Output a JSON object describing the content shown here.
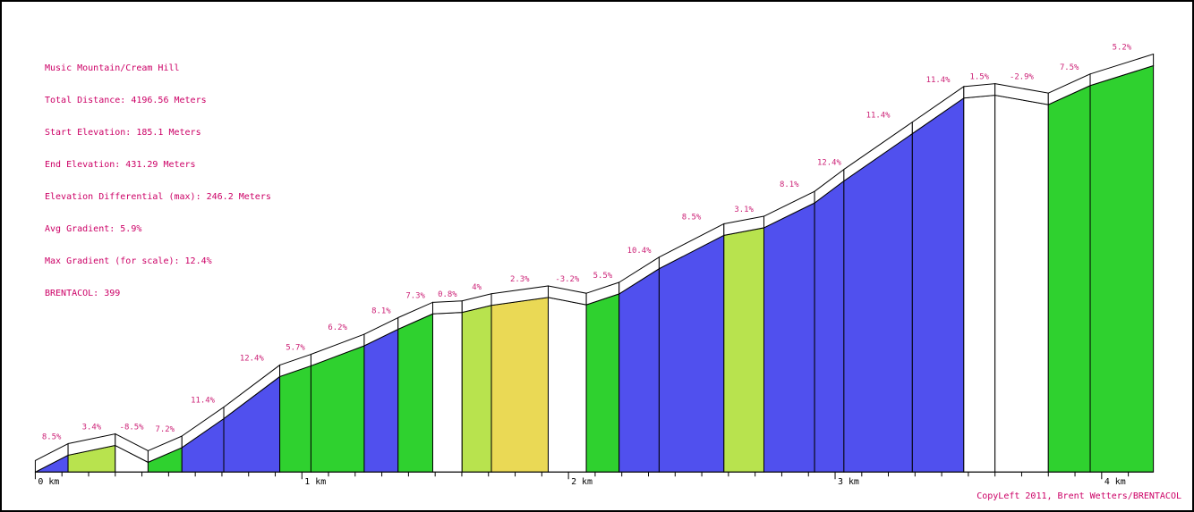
{
  "header": {
    "lines": [
      "Music Mountain/Cream Hill",
      "Total Distance: 4196.56 Meters",
      "Start Elevation: 185.1 Meters",
      "End Elevation: 431.29 Meters",
      "Elevation Differential (max): 246.2 Meters",
      "Avg Gradient: 5.9%",
      "Max Gradient (for scale): 12.4%",
      "BRENTACOL: 399"
    ]
  },
  "footer": {
    "credit": "CopyLeft 2011, Brent Wetters/BRENTACOL"
  },
  "colors": {
    "text_pink": "#cc0066",
    "label_pink": "#cc2277",
    "axis_text": "#000000",
    "outline": "#000000",
    "bands": {
      "blue": "#5050ee",
      "green": "#2fd12f",
      "yellow_green": "#b8e34e",
      "yellow": "#ead955",
      "white": "#ffffff"
    }
  },
  "chart_data": {
    "type": "area",
    "title": "Music Mountain/Cream Hill",
    "total_distance_m": 4196.56,
    "start_elevation_m": 185.1,
    "end_elevation_m": 431.29,
    "elevation_differential_max_m": 246.2,
    "avg_gradient_pct": 5.9,
    "max_gradient_for_scale_pct": 12.4,
    "x_range_km": [
      0,
      4.2
    ],
    "x_axis_tick_labels": [
      "0 km",
      "1 km",
      "2 km",
      "3 km",
      "4 km"
    ],
    "legend_note": "segments colored by gradient band: white <2% or descent, yellow 2-3%, yellow_green 3-5%, green 5-8%, blue >8%",
    "segments": [
      {
        "label": "8.5%",
        "gradient_pct": 8.5,
        "length_m": 123,
        "band": "blue"
      },
      {
        "label": "3.4%",
        "gradient_pct": 3.4,
        "length_m": 177,
        "band": "yellow_green"
      },
      {
        "label": "-8.5%",
        "gradient_pct": -8.5,
        "length_m": 123,
        "band": "white"
      },
      {
        "label": "7.2%",
        "gradient_pct": 7.2,
        "length_m": 127,
        "band": "green"
      },
      {
        "label": "11.4%",
        "gradient_pct": 11.4,
        "length_m": 157,
        "band": "blue"
      },
      {
        "label": "12.4%",
        "gradient_pct": 12.4,
        "length_m": 210,
        "band": "blue"
      },
      {
        "label": "5.7%",
        "gradient_pct": 5.7,
        "length_m": 117,
        "band": "green"
      },
      {
        "label": "6.2%",
        "gradient_pct": 6.2,
        "length_m": 200,
        "band": "green"
      },
      {
        "label": "8.1%",
        "gradient_pct": 8.1,
        "length_m": 127,
        "band": "blue"
      },
      {
        "label": "7.3%",
        "gradient_pct": 7.3,
        "length_m": 130,
        "band": "green"
      },
      {
        "label": "0.8%",
        "gradient_pct": 0.8,
        "length_m": 110,
        "band": "white"
      },
      {
        "label": "4%",
        "gradient_pct": 4.0,
        "length_m": 110,
        "band": "yellow_green"
      },
      {
        "label": "2.3%",
        "gradient_pct": 2.3,
        "length_m": 213,
        "band": "yellow"
      },
      {
        "label": "-3.2%",
        "gradient_pct": -3.2,
        "length_m": 143,
        "band": "white"
      },
      {
        "label": "5.5%",
        "gradient_pct": 5.5,
        "length_m": 123,
        "band": "green"
      },
      {
        "label": "10.4%",
        "gradient_pct": 10.4,
        "length_m": 150,
        "band": "blue"
      },
      {
        "label": "8.5%",
        "gradient_pct": 8.5,
        "length_m": 243,
        "band": "blue"
      },
      {
        "label": "3.1%",
        "gradient_pct": 3.1,
        "length_m": 150,
        "band": "yellow_green"
      },
      {
        "label": "8.1%",
        "gradient_pct": 8.1,
        "length_m": 190,
        "band": "blue"
      },
      {
        "label": "12.4%",
        "gradient_pct": 12.4,
        "length_m": 110,
        "band": "blue"
      },
      {
        "label": "11.4%",
        "gradient_pct": 11.4,
        "length_m": 257,
        "band": "blue"
      },
      {
        "label": "11.4%",
        "gradient_pct": 11.4,
        "length_m": 193,
        "band": "blue"
      },
      {
        "label": "1.5%",
        "gradient_pct": 1.5,
        "length_m": 117,
        "band": "white"
      },
      {
        "label": "-2.9%",
        "gradient_pct": -2.9,
        "length_m": 200,
        "band": "white"
      },
      {
        "label": "7.5%",
        "gradient_pct": 7.5,
        "length_m": 157,
        "band": "green"
      },
      {
        "label": "5.2%",
        "gradient_pct": 5.2,
        "length_m": 237,
        "band": "green"
      }
    ]
  }
}
